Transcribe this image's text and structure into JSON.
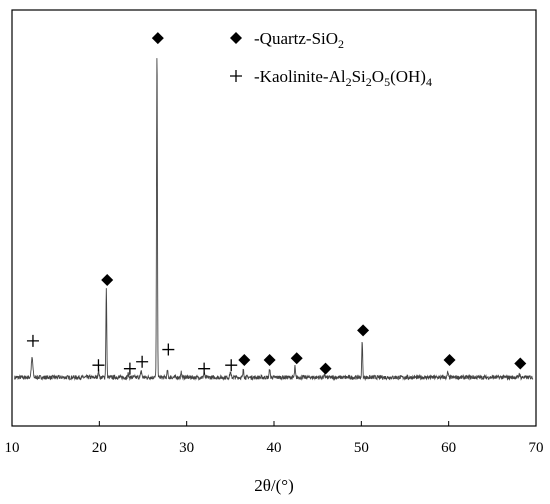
{
  "chart_data": {
    "type": "line",
    "xlabel": "2θ/(°)",
    "ylabel": "",
    "xlim": [
      10,
      70
    ],
    "ylim": [
      0,
      1
    ],
    "y_ticks_shown": false,
    "x_ticks": [
      10,
      20,
      30,
      40,
      50,
      60,
      70
    ],
    "x_tick_labels": [
      "10",
      "20",
      "30",
      "40",
      "50",
      "60",
      "70"
    ],
    "legend": {
      "placement": "top-right",
      "entries": [
        {
          "marker": "diamond",
          "text_parts": [
            [
              "-Quartz-SiO",
              false
            ],
            [
              "2",
              true
            ]
          ]
        },
        {
          "marker": "plus",
          "text_parts": [
            [
              "-Kaolinite-Al",
              false
            ],
            [
              "2",
              true
            ],
            [
              "Si",
              false
            ],
            [
              "2",
              true
            ],
            [
              "O",
              false
            ],
            [
              "5",
              true
            ],
            [
              "(OH)",
              false
            ],
            [
              "4",
              true
            ]
          ]
        }
      ]
    },
    "baseline": 0.065,
    "peaks": [
      {
        "x": 12.3,
        "y": 0.12,
        "w": 0.18
      },
      {
        "x": 19.9,
        "y": 0.085,
        "w": 0.12
      },
      {
        "x": 20.8,
        "y": 0.32,
        "w": 0.1
      },
      {
        "x": 23.3,
        "y": 0.075,
        "w": 0.12
      },
      {
        "x": 24.8,
        "y": 0.085,
        "w": 0.12
      },
      {
        "x": 26.6,
        "y": 1.0,
        "w": 0.1
      },
      {
        "x": 27.8,
        "y": 0.085,
        "w": 0.1
      },
      {
        "x": 29.4,
        "y": 0.08,
        "w": 0.1
      },
      {
        "x": 32.0,
        "y": 0.075,
        "w": 0.12
      },
      {
        "x": 35.0,
        "y": 0.08,
        "w": 0.12
      },
      {
        "x": 36.5,
        "y": 0.09,
        "w": 0.1
      },
      {
        "x": 39.5,
        "y": 0.09,
        "w": 0.1
      },
      {
        "x": 42.4,
        "y": 0.095,
        "w": 0.1
      },
      {
        "x": 45.8,
        "y": 0.07,
        "w": 0.12
      },
      {
        "x": 50.1,
        "y": 0.17,
        "w": 0.1
      },
      {
        "x": 59.9,
        "y": 0.08,
        "w": 0.1
      },
      {
        "x": 68.1,
        "y": 0.075,
        "w": 0.12
      }
    ],
    "markers": [
      {
        "type": "plus",
        "x": 12.4,
        "y": 0.17
      },
      {
        "type": "plus",
        "x": 19.9,
        "y": 0.1
      },
      {
        "type": "diamond",
        "x": 20.9,
        "y": 0.345
      },
      {
        "type": "plus",
        "x": 23.5,
        "y": 0.09
      },
      {
        "type": "plus",
        "x": 24.9,
        "y": 0.11
      },
      {
        "type": "diamond",
        "x": 26.7,
        "y": 1.04
      },
      {
        "type": "plus",
        "x": 27.9,
        "y": 0.145
      },
      {
        "type": "plus",
        "x": 32.0,
        "y": 0.09
      },
      {
        "type": "plus",
        "x": 35.1,
        "y": 0.1
      },
      {
        "type": "diamond",
        "x": 36.6,
        "y": 0.115
      },
      {
        "type": "diamond",
        "x": 39.5,
        "y": 0.115
      },
      {
        "type": "diamond",
        "x": 42.6,
        "y": 0.12
      },
      {
        "type": "diamond",
        "x": 45.9,
        "y": 0.09
      },
      {
        "type": "diamond",
        "x": 50.2,
        "y": 0.2
      },
      {
        "type": "diamond",
        "x": 60.1,
        "y": 0.115
      },
      {
        "type": "diamond",
        "x": 68.2,
        "y": 0.105
      }
    ],
    "colors": {
      "line": "#444444",
      "marker": "#000000"
    }
  }
}
